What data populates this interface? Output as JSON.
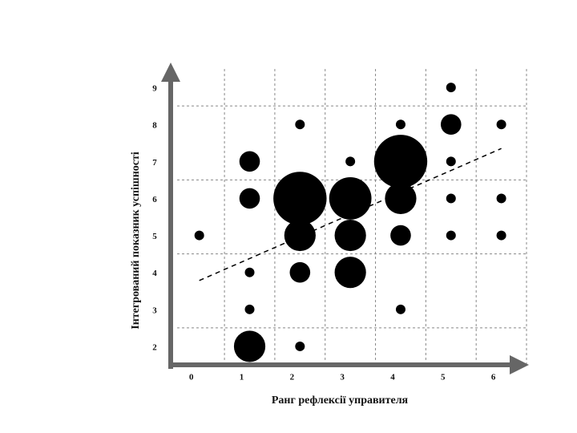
{
  "chart_data": {
    "type": "bubble",
    "x_label": "Ранг рефлексії управителя",
    "y_label": "Інтегрований показник успішності",
    "xlim": [
      -0.6,
      6.5
    ],
    "ylim": [
      1.5,
      9.5
    ],
    "xticks": [
      0,
      1,
      2,
      3,
      4,
      5,
      6
    ],
    "yticks": [
      2,
      3,
      4,
      5,
      6,
      7,
      8,
      9
    ],
    "xgrid": [
      0.5,
      1.5,
      2.5,
      3.5,
      4.5,
      5.5,
      6.5
    ],
    "ygrid": [
      2.5,
      4.5,
      6.5,
      8.5
    ],
    "color": "#000000",
    "x": [
      0,
      1,
      1,
      1,
      1,
      1,
      2,
      2,
      2,
      2,
      2,
      3,
      3,
      3,
      3,
      4,
      4,
      4,
      4,
      4,
      5,
      5,
      5,
      5,
      5,
      6,
      6,
      6
    ],
    "y": [
      5,
      7,
      6,
      4,
      3,
      2,
      8,
      6,
      5,
      4,
      2,
      7,
      6,
      5,
      4,
      8,
      7,
      6,
      5,
      3,
      9,
      8,
      7,
      6,
      5,
      8,
      6,
      5
    ],
    "size": [
      1,
      2,
      2,
      1,
      1,
      3,
      1,
      5,
      3,
      2,
      1,
      1,
      4,
      3,
      3,
      1,
      5,
      3,
      2,
      1,
      1,
      2,
      1,
      1,
      1,
      1,
      1,
      1
    ],
    "trend": {
      "x": [
        0,
        6
      ],
      "y": [
        3.78,
        7.35
      ]
    }
  }
}
